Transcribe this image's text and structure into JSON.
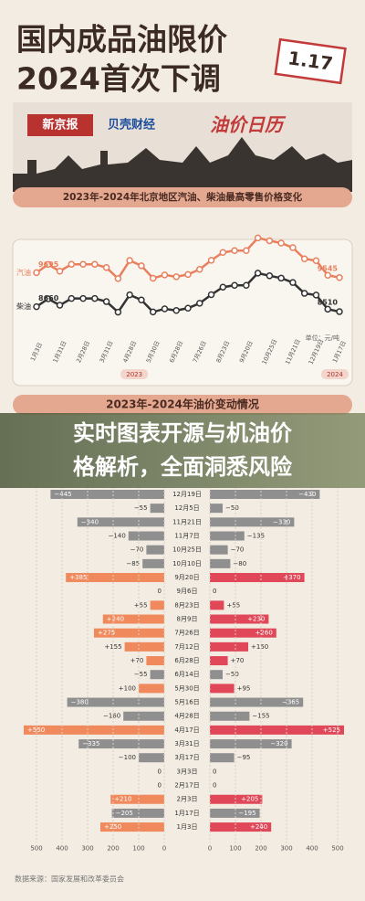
{
  "header": {
    "title_line1": "国内成品油限价",
    "title_line2": "2024首次下调",
    "date_stamp": "1.17",
    "logo1": "新京报",
    "logo2": "贝壳财经",
    "calendar": "油价日历"
  },
  "section1": "2023年-2024年北京地区汽油、柴油最高零售价格变化",
  "section2": "2023年-2024年油价变动情况",
  "banner": {
    "lines": [
      "实时图表开源与机油价",
      "格解析，全面洞悉风险"
    ]
  },
  "source": "数据来源：国家发展和改革委员会",
  "chart_data": [
    {
      "type": "line",
      "unit": "单位：元/吨",
      "year_badges": [
        "2023",
        "2024"
      ],
      "categories": [
        "1月3日",
        null,
        "1月31日",
        null,
        "2月28日",
        null,
        "3月31日",
        null,
        "4月28日",
        null,
        "5月30日",
        null,
        "6月28日",
        null,
        "7月26日",
        null,
        "8月23日",
        null,
        "9月20日",
        null,
        "10月25日",
        null,
        "11月21日",
        null,
        "12月19日",
        null,
        "1月17日"
      ],
      "ylim": [
        8400,
        10900
      ],
      "series": [
        {
          "name": "汽油",
          "color": "#e8805e",
          "values": [
            9695,
            9945,
            9740,
            9950,
            9950,
            9950,
            9850,
            9515,
            10065,
            9905,
            9525,
            9625,
            9570,
            9640,
            9795,
            10070,
            10310,
            10365,
            10365,
            10750,
            10665,
            10595,
            10455,
            10115,
            10060,
            9615,
            9545
          ]
        },
        {
          "name": "柴油",
          "color": "#333333",
          "values": [
            8660,
            8900,
            8705,
            8910,
            8910,
            8910,
            8815,
            8495,
            9020,
            8865,
            8500,
            8595,
            8545,
            8615,
            8765,
            9025,
            9255,
            9310,
            9310,
            9680,
            9600,
            9530,
            9395,
            9065,
            9015,
            8585,
            8510
          ]
        }
      ]
    },
    {
      "type": "bar",
      "orientation": "diverging",
      "xlim": [
        0,
        500
      ],
      "xticks_left": [
        500,
        400,
        300,
        200,
        100,
        0
      ],
      "xticks_right": [
        0,
        100,
        200,
        300,
        400,
        500
      ],
      "categories": [
        "12月19日",
        "12月5日",
        "11月21日",
        "11月7日",
        "10月25日",
        "10月10日",
        "9月20日",
        "9月6日",
        "8月23日",
        "8月9日",
        "7月26日",
        "7月12日",
        "6月28日",
        "6月14日",
        "5月30日",
        "5月16日",
        "4月28日",
        "4月17日",
        "3月31日",
        "3月17日",
        "3月3日",
        "2月17日",
        "2月3日",
        "1月17日",
        "1月3日"
      ],
      "series": [
        {
          "color_up": "#f08a5d",
          "color_down": "#8f8f8f",
          "values": [
            -445,
            -55,
            -340,
            -140,
            -70,
            -85,
            385,
            0,
            55,
            240,
            275,
            155,
            70,
            -55,
            100,
            -380,
            -160,
            550,
            -335,
            -100,
            0,
            0,
            210,
            -205,
            250
          ],
          "value_labels": [
            "−445",
            "−55",
            "−340",
            "−140",
            "−70",
            "−85",
            "+385",
            "0",
            "+55",
            "+240",
            "+275",
            "+155",
            "+70",
            "−55",
            "+100",
            "−380",
            "−160",
            "+550",
            "−335",
            "−100",
            "0",
            "0",
            "+210",
            "−205",
            "+250"
          ]
        },
        {
          "color_up": "#e0485a",
          "color_down": "#8f8f8f",
          "values": [
            -430,
            -50,
            -330,
            -135,
            -70,
            -80,
            370,
            0,
            55,
            230,
            260,
            150,
            70,
            -50,
            95,
            -365,
            -155,
            525,
            -320,
            -95,
            0,
            0,
            205,
            -195,
            240
          ],
          "value_labels": [
            "−430",
            "−50",
            "−330",
            "−135",
            "−70",
            "−80",
            "+370",
            "0",
            "+55",
            "+230",
            "+260",
            "+150",
            "+70",
            "−50",
            "+95",
            "−365",
            "−155",
            "+525",
            "−320",
            "−95",
            "0",
            "0",
            "+205",
            "−195",
            "+240"
          ]
        }
      ]
    }
  ]
}
